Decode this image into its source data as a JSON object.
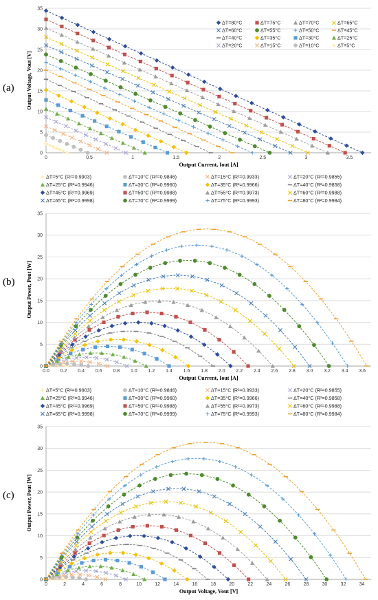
{
  "panels": [
    {
      "label": "(a)",
      "chart_data": {
        "type": "scatter",
        "xlabel": "Output Current, Iout [A]",
        "ylabel": "Output Voltage, Vout [V]",
        "xlim": [
          0,
          3.75
        ],
        "ylim": [
          0,
          35
        ],
        "xticks": [
          "0",
          "0.5",
          "1",
          "1.5",
          "2",
          "2.5",
          "3",
          "3.5"
        ],
        "xtick_values": [
          0,
          0.5,
          1,
          1.5,
          2,
          2.5,
          3,
          3.5
        ],
        "yticks": [
          "0",
          "5",
          "10",
          "15",
          "20",
          "25",
          "30",
          "35"
        ],
        "ytick_values": [
          0,
          5,
          10,
          15,
          20,
          25,
          30,
          35
        ],
        "grid": "horizontal",
        "legend_position": "top-right",
        "series": [
          {
            "name": "ΔT=80°C",
            "color": "#2E4D9B",
            "marker": "diamond",
            "voc": 34.4,
            "isc": 3.65
          },
          {
            "name": "ΔT=75°C",
            "color": "#C0504D",
            "marker": "square",
            "voc": 32.3,
            "isc": 3.45
          },
          {
            "name": "ΔT=70°C",
            "color": "#9C9C9C",
            "marker": "triangle",
            "voc": 30.2,
            "isc": 3.25
          },
          {
            "name": "ΔT=65°C",
            "color": "#E8C100",
            "marker": "x",
            "voc": 28.0,
            "isc": 3.02
          },
          {
            "name": "ΔT=60°C",
            "color": "#4A7EBB",
            "marker": "x",
            "voc": 26.0,
            "isc": 2.82
          },
          {
            "name": "ΔT=55°C",
            "color": "#4E8A2E",
            "marker": "circle",
            "voc": 23.8,
            "isc": 2.58
          },
          {
            "name": "ΔT=50°C",
            "color": "#5B9BD5",
            "marker": "plus",
            "voc": 21.9,
            "isc": 2.38
          },
          {
            "name": "ΔT=45°C",
            "color": "#F0A030",
            "marker": "dash",
            "voc": 20.0,
            "isc": 2.15
          },
          {
            "name": "ΔT=40°C",
            "color": "#7F7F7F",
            "marker": "dash",
            "voc": 17.8,
            "isc": 1.9
          },
          {
            "name": "ΔT=35°C",
            "color": "#F5C000",
            "marker": "diamond",
            "voc": 15.2,
            "isc": 1.62
          },
          {
            "name": "ΔT=30°C",
            "color": "#5B9BD5",
            "marker": "square",
            "voc": 12.8,
            "isc": 1.4
          },
          {
            "name": "ΔT=25°C",
            "color": "#70AD47",
            "marker": "triangle",
            "voc": 10.6,
            "isc": 1.14
          },
          {
            "name": "ΔT=20°C",
            "color": "#A5A5D5",
            "marker": "x",
            "voc": 8.6,
            "isc": 0.92
          },
          {
            "name": "ΔT=15°C",
            "color": "#F4B183",
            "marker": "x",
            "voc": 6.4,
            "isc": 0.7
          },
          {
            "name": "ΔT=10°C",
            "color": "#BFBFBF",
            "marker": "circle",
            "voc": 4.3,
            "isc": 0.48
          },
          {
            "name": "ΔT=5°C",
            "color": "#FFE699",
            "marker": "plus",
            "voc": 2.2,
            "isc": 0.24
          }
        ]
      }
    },
    {
      "label": "(b)",
      "chart_data": {
        "type": "scatter",
        "xlabel": "Output Current, Iout [A]",
        "ylabel": "Output Power, Pout [W]",
        "xlim": [
          0,
          3.7
        ],
        "ylim": [
          0,
          35
        ],
        "xticks": [
          "0.0",
          "0.2",
          "0.4",
          "0.6",
          "0.8",
          "1.0",
          "1.2",
          "1.4",
          "1.6",
          "1.8",
          "2.0",
          "2.2",
          "2.4",
          "2.6",
          "2.8",
          "3.0",
          "3.2",
          "3.4",
          "3.6"
        ],
        "xtick_values": [
          0,
          0.2,
          0.4,
          0.6,
          0.8,
          1.0,
          1.2,
          1.4,
          1.6,
          1.8,
          2.0,
          2.2,
          2.4,
          2.6,
          2.8,
          3.0,
          3.2,
          3.4,
          3.6
        ],
        "yticks": [
          "0",
          "5",
          "10",
          "15",
          "20",
          "25",
          "30",
          "35"
        ],
        "ytick_values": [
          0,
          5,
          10,
          15,
          20,
          25,
          30,
          35
        ],
        "grid": "horizontal",
        "legend_position": "top",
        "series": [
          {
            "name": "ΔT=5°C (R²=0.9903)",
            "color": "#FFE699",
            "marker": "plus",
            "isc": 0.24,
            "pmax": 0.13
          },
          {
            "name": "ΔT=10°C (R²=0.9846)",
            "color": "#BFBFBF",
            "marker": "circle",
            "isc": 0.48,
            "pmax": 0.52
          },
          {
            "name": "ΔT=15°C (R²=0.9933)",
            "color": "#F4B183",
            "marker": "x",
            "isc": 0.7,
            "pmax": 1.1
          },
          {
            "name": "ΔT=20°C (R²=0.9855)",
            "color": "#A5A5D5",
            "marker": "x",
            "isc": 0.92,
            "pmax": 2.0
          },
          {
            "name": "ΔT=25°C (R²=0.9946)",
            "color": "#70AD47",
            "marker": "triangle",
            "isc": 1.14,
            "pmax": 3.0
          },
          {
            "name": "ΔT=30°C (R²=0.9960)",
            "color": "#5B9BD5",
            "marker": "square",
            "isc": 1.4,
            "pmax": 4.5
          },
          {
            "name": "ΔT=35°C (R²=0.9966)",
            "color": "#F5C000",
            "marker": "diamond",
            "isc": 1.62,
            "pmax": 6.1
          },
          {
            "name": "ΔT=40°C (R²=0.9858)",
            "color": "#7F7F7F",
            "marker": "dash",
            "isc": 1.9,
            "pmax": 8.0
          },
          {
            "name": "ΔT=45°C (R²=0.9969)",
            "color": "#2E4D9B",
            "marker": "diamond",
            "isc": 2.1,
            "pmax": 10.0
          },
          {
            "name": "ΔT=50°C (R²=0.9988)",
            "color": "#C0504D",
            "marker": "square",
            "isc": 2.3,
            "pmax": 12.3
          },
          {
            "name": "ΔT=55°C (R²=0.9973)",
            "color": "#9C9C9C",
            "marker": "triangle",
            "isc": 2.58,
            "pmax": 14.9
          },
          {
            "name": "ΔT=60°C (R²=0.9988)",
            "color": "#E8C100",
            "marker": "x",
            "isc": 2.82,
            "pmax": 17.8
          },
          {
            "name": "ΔT=65°C (R²=0.9998)",
            "color": "#4A7EBB",
            "marker": "x",
            "isc": 3.0,
            "pmax": 20.8
          },
          {
            "name": "ΔT=70°C (R²=0.9999)",
            "color": "#4E8A2E",
            "marker": "circle",
            "isc": 3.22,
            "pmax": 24.2
          },
          {
            "name": "ΔT=75°C (R²=0.9993)",
            "color": "#5B9BD5",
            "marker": "plus",
            "isc": 3.43,
            "pmax": 27.7
          },
          {
            "name": "ΔT=80°C (R²=0.9984)",
            "color": "#F0A030",
            "marker": "dash",
            "isc": 3.65,
            "pmax": 31.4
          }
        ]
      }
    },
    {
      "label": "(c)",
      "chart_data": {
        "type": "scatter",
        "xlabel": "Output Voltage, Vout [V]",
        "ylabel": "Output Power, Pout [W]",
        "xlim": [
          0,
          35
        ],
        "ylim": [
          0,
          35
        ],
        "xticks": [
          "0",
          "2",
          "4",
          "6",
          "8",
          "10",
          "12",
          "14",
          "16",
          "18",
          "20",
          "22",
          "24",
          "26",
          "28",
          "30",
          "32",
          "34"
        ],
        "xtick_values": [
          0,
          2,
          4,
          6,
          8,
          10,
          12,
          14,
          16,
          18,
          20,
          22,
          24,
          26,
          28,
          30,
          32,
          34
        ],
        "yticks": [
          "0",
          "5",
          "10",
          "15",
          "20",
          "25",
          "30",
          "35"
        ],
        "ytick_values": [
          0,
          5,
          10,
          15,
          20,
          25,
          30,
          35
        ],
        "grid": "horizontal",
        "legend_position": "top",
        "series": [
          {
            "name": "ΔT=5°C (R²=0.9903)",
            "color": "#FFE699",
            "marker": "plus",
            "voc": 2.2,
            "pmax": 0.13
          },
          {
            "name": "ΔT=10°C (R²=0.9846)",
            "color": "#BFBFBF",
            "marker": "circle",
            "voc": 4.3,
            "pmax": 0.52
          },
          {
            "name": "ΔT=15°C (R²=0.9933)",
            "color": "#F4B183",
            "marker": "x",
            "voc": 6.4,
            "pmax": 1.1
          },
          {
            "name": "ΔT=20°C (R²=0.9855)",
            "color": "#A5A5D5",
            "marker": "x",
            "voc": 8.6,
            "pmax": 2.0
          },
          {
            "name": "ΔT=25°C (R²=0.9946)",
            "color": "#70AD47",
            "marker": "triangle",
            "voc": 10.6,
            "pmax": 3.0
          },
          {
            "name": "ΔT=30°C (R²=0.9960)",
            "color": "#5B9BD5",
            "marker": "square",
            "voc": 12.8,
            "pmax": 4.5
          },
          {
            "name": "ΔT=35°C (R²=0.9966)",
            "color": "#F5C000",
            "marker": "diamond",
            "voc": 15.2,
            "pmax": 6.1
          },
          {
            "name": "ΔT=40°C (R²=0.9858)",
            "color": "#7F7F7F",
            "marker": "dash",
            "voc": 17.4,
            "pmax": 8.0
          },
          {
            "name": "ΔT=45°C (R²=0.9969)",
            "color": "#2E4D9B",
            "marker": "diamond",
            "voc": 19.6,
            "pmax": 10.0
          },
          {
            "name": "ΔT=50°C (R²=0.9988)",
            "color": "#C0504D",
            "marker": "square",
            "voc": 21.8,
            "pmax": 12.3
          },
          {
            "name": "ΔT=55°C (R²=0.9973)",
            "color": "#9C9C9C",
            "marker": "triangle",
            "voc": 23.8,
            "pmax": 14.9
          },
          {
            "name": "ΔT=60°C (R²=0.9988)",
            "color": "#E8C100",
            "marker": "x",
            "voc": 25.8,
            "pmax": 17.8
          },
          {
            "name": "ΔT=65°C (R²=0.9998)",
            "color": "#4A7EBB",
            "marker": "x",
            "voc": 28.0,
            "pmax": 20.8
          },
          {
            "name": "ΔT=70°C (R²=0.9999)",
            "color": "#4E8A2E",
            "marker": "circle",
            "voc": 30.2,
            "pmax": 24.2
          },
          {
            "name": "ΔT=75°C (R²=0.9993)",
            "color": "#5B9BD5",
            "marker": "plus",
            "voc": 32.3,
            "pmax": 27.7
          },
          {
            "name": "ΔT=80°C (R²=0.9984)",
            "color": "#F0A030",
            "marker": "dash",
            "voc": 34.4,
            "pmax": 31.4
          }
        ]
      }
    }
  ]
}
